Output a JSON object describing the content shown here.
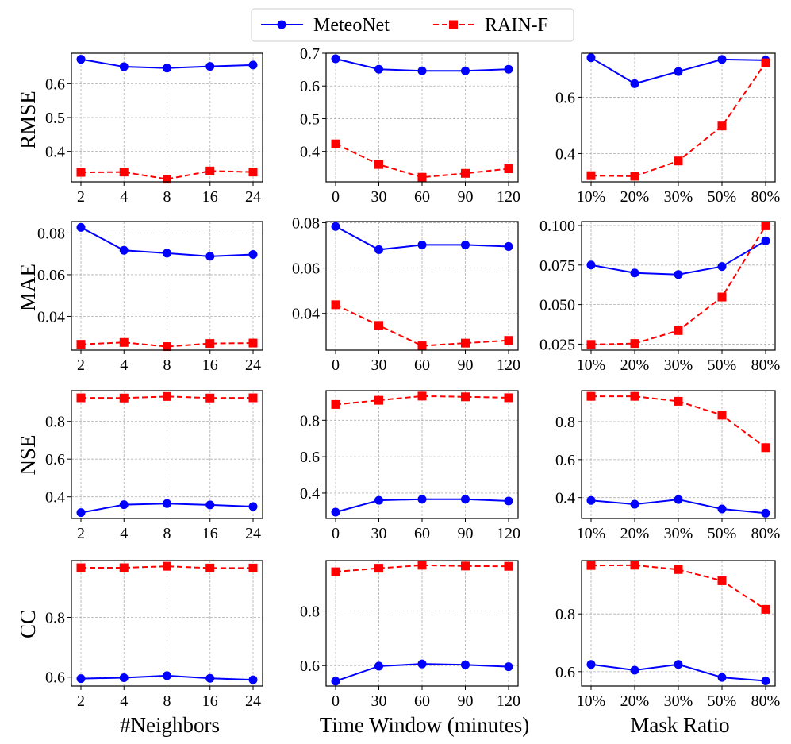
{
  "legend": {
    "entries": [
      {
        "label": "MeteoNet",
        "color": "#0000ff",
        "marker": "circle",
        "dash": "solid"
      },
      {
        "label": "RAIN-F",
        "color": "#ff0000",
        "marker": "square",
        "dash": "dashed"
      }
    ],
    "placement": "top-center"
  },
  "rows": [
    {
      "ylabel": "RMSE"
    },
    {
      "ylabel": "MAE"
    },
    {
      "ylabel": "NSE"
    },
    {
      "ylabel": "CC"
    }
  ],
  "columns": [
    {
      "xlabel": "#Neighbors"
    },
    {
      "xlabel": "Time Window (minutes)"
    },
    {
      "xlabel": "Mask Ratio"
    }
  ],
  "chart_data": [
    {
      "type": "line",
      "row": 0,
      "col": 0,
      "x": [
        "2",
        "4",
        "8",
        "16",
        "24"
      ],
      "ylabel": "RMSE",
      "xlabel": "",
      "ylim": [
        0.31,
        0.69
      ],
      "yticks": [
        0.4,
        0.5,
        0.6
      ],
      "ytick_labels": [
        "0.4",
        "0.5",
        "0.6"
      ],
      "grid": true,
      "series": [
        {
          "name": "MeteoNet",
          "values": [
            0.672,
            0.65,
            0.646,
            0.651,
            0.655
          ]
        },
        {
          "name": "RAIN-F",
          "values": [
            0.338,
            0.339,
            0.318,
            0.342,
            0.339
          ]
        }
      ]
    },
    {
      "type": "line",
      "row": 0,
      "col": 1,
      "x": [
        "0",
        "30",
        "60",
        "90",
        "120"
      ],
      "ylabel": "",
      "xlabel": "",
      "ylim": [
        0.307,
        0.7
      ],
      "yticks": [
        0.4,
        0.5,
        0.6,
        0.7
      ],
      "ytick_labels": [
        "0.4",
        "0.5",
        "0.6",
        "0.7"
      ],
      "grid": true,
      "series": [
        {
          "name": "MeteoNet",
          "values": [
            0.683,
            0.651,
            0.646,
            0.646,
            0.651
          ]
        },
        {
          "name": "RAIN-F",
          "values": [
            0.423,
            0.36,
            0.321,
            0.333,
            0.347
          ]
        }
      ]
    },
    {
      "type": "line",
      "row": 0,
      "col": 2,
      "x": [
        "10%",
        "20%",
        "30%",
        "50%",
        "80%"
      ],
      "ylabel": "",
      "xlabel": "",
      "ylim": [
        0.3,
        0.756
      ],
      "yticks": [
        0.4,
        0.6
      ],
      "ytick_labels": [
        "0.4",
        "0.6"
      ],
      "grid": true,
      "series": [
        {
          "name": "MeteoNet",
          "values": [
            0.74,
            0.648,
            0.691,
            0.734,
            0.731
          ]
        },
        {
          "name": "RAIN-F",
          "values": [
            0.322,
            0.32,
            0.374,
            0.498,
            0.722
          ]
        }
      ]
    },
    {
      "type": "line",
      "row": 1,
      "col": 0,
      "x": [
        "2",
        "4",
        "8",
        "16",
        "24"
      ],
      "ylabel": "MAE",
      "xlabel": "",
      "ylim": [
        0.0238,
        0.0855
      ],
      "yticks": [
        0.04,
        0.06,
        0.08
      ],
      "ytick_labels": [
        "0.04",
        "0.06",
        "0.08"
      ],
      "grid": true,
      "series": [
        {
          "name": "MeteoNet",
          "values": [
            0.0827,
            0.0717,
            0.0703,
            0.0688,
            0.0697
          ]
        },
        {
          "name": "RAIN-F",
          "values": [
            0.0266,
            0.0275,
            0.0255,
            0.027,
            0.0272
          ]
        }
      ]
    },
    {
      "type": "line",
      "row": 1,
      "col": 1,
      "x": [
        "0",
        "30",
        "60",
        "90",
        "120"
      ],
      "ylabel": "",
      "xlabel": "",
      "ylim": [
        0.0238,
        0.0805
      ],
      "yticks": [
        0.04,
        0.06,
        0.08
      ],
      "ytick_labels": [
        "0.04",
        "0.06",
        "0.08"
      ],
      "grid": true,
      "series": [
        {
          "name": "MeteoNet",
          "values": [
            0.0783,
            0.0681,
            0.0702,
            0.0702,
            0.0695
          ]
        },
        {
          "name": "RAIN-F",
          "values": [
            0.0438,
            0.0347,
            0.0257,
            0.0269,
            0.0281
          ]
        }
      ]
    },
    {
      "type": "line",
      "row": 1,
      "col": 2,
      "x": [
        "10%",
        "20%",
        "30%",
        "50%",
        "80%"
      ],
      "ylabel": "",
      "xlabel": "",
      "ylim": [
        0.0212,
        0.1025
      ],
      "yticks": [
        0.025,
        0.05,
        0.075,
        0.1
      ],
      "ytick_labels": [
        "0.025",
        "0.050",
        "0.075",
        "0.100"
      ],
      "grid": true,
      "series": [
        {
          "name": "MeteoNet",
          "values": [
            0.075,
            0.07,
            0.069,
            0.0741,
            0.0903
          ]
        },
        {
          "name": "RAIN-F",
          "values": [
            0.0248,
            0.0254,
            0.0336,
            0.0548,
            0.0998
          ]
        }
      ]
    },
    {
      "type": "line",
      "row": 2,
      "col": 0,
      "x": [
        "2",
        "4",
        "8",
        "16",
        "24"
      ],
      "ylabel": "NSE",
      "xlabel": "",
      "ylim": [
        0.285,
        0.963
      ],
      "yticks": [
        0.4,
        0.6,
        0.8
      ],
      "ytick_labels": [
        "0.4",
        "0.6",
        "0.8"
      ],
      "grid": true,
      "series": [
        {
          "name": "MeteoNet",
          "values": [
            0.316,
            0.358,
            0.364,
            0.357,
            0.348
          ]
        },
        {
          "name": "RAIN-F",
          "values": [
            0.925,
            0.924,
            0.932,
            0.924,
            0.925
          ]
        }
      ]
    },
    {
      "type": "line",
      "row": 2,
      "col": 1,
      "x": [
        "0",
        "30",
        "60",
        "90",
        "120"
      ],
      "ylabel": "",
      "xlabel": "",
      "ylim": [
        0.26,
        0.963
      ],
      "yticks": [
        0.4,
        0.6,
        0.8
      ],
      "ytick_labels": [
        "0.4",
        "0.6",
        "0.8"
      ],
      "grid": true,
      "series": [
        {
          "name": "MeteoNet",
          "values": [
            0.295,
            0.36,
            0.366,
            0.366,
            0.356
          ]
        },
        {
          "name": "RAIN-F",
          "values": [
            0.887,
            0.91,
            0.933,
            0.929,
            0.924
          ]
        }
      ]
    },
    {
      "type": "line",
      "row": 2,
      "col": 2,
      "x": [
        "10%",
        "20%",
        "30%",
        "50%",
        "80%"
      ],
      "ylabel": "",
      "xlabel": "",
      "ylim": [
        0.29,
        0.963
      ],
      "yticks": [
        0.4,
        0.6,
        0.8
      ],
      "ytick_labels": [
        "0.4",
        "0.6",
        "0.8"
      ],
      "grid": true,
      "series": [
        {
          "name": "MeteoNet",
          "values": [
            0.385,
            0.365,
            0.39,
            0.34,
            0.318
          ]
        },
        {
          "name": "RAIN-F",
          "values": [
            0.933,
            0.933,
            0.907,
            0.834,
            0.663
          ]
        }
      ]
    },
    {
      "type": "line",
      "row": 3,
      "col": 0,
      "x": [
        "2",
        "4",
        "8",
        "16",
        "24"
      ],
      "ylabel": "CC",
      "xlabel": "#Neighbors",
      "ylim": [
        0.57,
        0.99
      ],
      "yticks": [
        0.6,
        0.8
      ],
      "ytick_labels": [
        "0.6",
        "0.8"
      ],
      "grid": true,
      "series": [
        {
          "name": "MeteoNet",
          "values": [
            0.595,
            0.598,
            0.605,
            0.596,
            0.591
          ]
        },
        {
          "name": "RAIN-F",
          "values": [
            0.966,
            0.966,
            0.971,
            0.965,
            0.965
          ]
        }
      ]
    },
    {
      "type": "line",
      "row": 3,
      "col": 1,
      "x": [
        "0",
        "30",
        "60",
        "90",
        "120"
      ],
      "ylabel": "",
      "xlabel": "Time Window (minutes)",
      "ylim": [
        0.525,
        0.985
      ],
      "yticks": [
        0.6,
        0.8
      ],
      "ytick_labels": [
        "0.6",
        "0.8"
      ],
      "grid": true,
      "series": [
        {
          "name": "MeteoNet",
          "values": [
            0.543,
            0.598,
            0.606,
            0.603,
            0.596
          ]
        },
        {
          "name": "RAIN-F",
          "values": [
            0.944,
            0.957,
            0.968,
            0.965,
            0.964
          ]
        }
      ]
    },
    {
      "type": "line",
      "row": 3,
      "col": 2,
      "x": [
        "10%",
        "20%",
        "30%",
        "50%",
        "80%"
      ],
      "ylabel": "",
      "xlabel": "Mask Ratio",
      "ylim": [
        0.55,
        0.985
      ],
      "yticks": [
        0.6,
        0.8
      ],
      "ytick_labels": [
        "0.6",
        "0.8"
      ],
      "grid": true,
      "series": [
        {
          "name": "MeteoNet",
          "values": [
            0.625,
            0.605,
            0.625,
            0.58,
            0.568
          ]
        },
        {
          "name": "RAIN-F",
          "values": [
            0.968,
            0.969,
            0.954,
            0.915,
            0.816
          ]
        }
      ]
    }
  ]
}
